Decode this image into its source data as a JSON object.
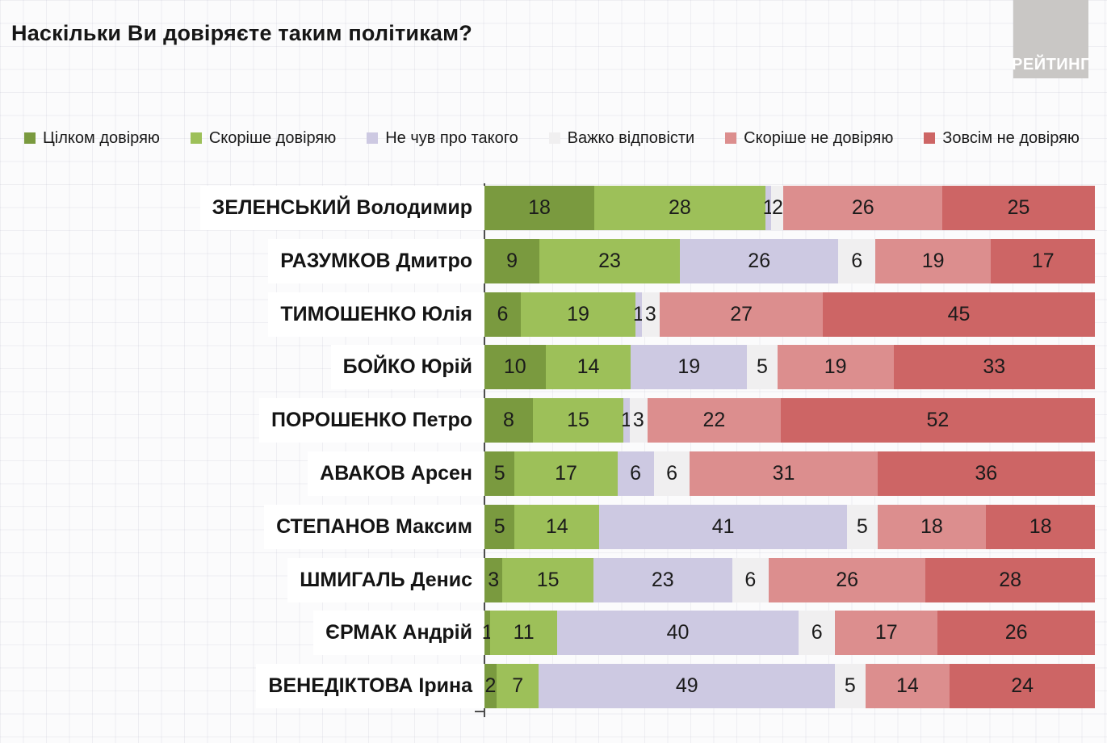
{
  "page": {
    "title": "Наскільки Ви довіряєте таким політикам?",
    "logo_text": "РЕЙТИНГ",
    "logo_bg": "#c9c7c5"
  },
  "chart_data": {
    "type": "bar",
    "orientation": "horizontal",
    "stacked": true,
    "value_unit": "percent",
    "title": "Наскільки Ви довіряєте таким політикам?",
    "legend_position": "top",
    "grid": "faint graph-paper background",
    "categories": [
      "ЗЕЛЕНСЬКИЙ Володимир",
      "РАЗУМКОВ Дмитро",
      "ТИМОШЕНКО Юлія",
      "БОЙКО Юрій",
      "ПОРОШЕНКО Петро",
      "АВАКОВ Арсен",
      "СТЕПАНОВ Максим",
      "ШМИГАЛЬ Денис",
      "ЄРМАК Андрій",
      "ВЕНЕДІКТОВА Ірина"
    ],
    "series": [
      {
        "name": "Цілком довіряю",
        "color": "#7a9a3f",
        "values": [
          18,
          9,
          6,
          10,
          8,
          5,
          5,
          3,
          1,
          2
        ]
      },
      {
        "name": "Скоріше довіряю",
        "color": "#9dc059",
        "values": [
          28,
          23,
          19,
          14,
          15,
          17,
          14,
          15,
          11,
          7
        ]
      },
      {
        "name": "Не чув про такого",
        "color": "#cdc9e2",
        "values": [
          1,
          26,
          1,
          19,
          1,
          6,
          41,
          23,
          40,
          49
        ]
      },
      {
        "name": "Важко відповісти",
        "color": "#f0eff0",
        "values": [
          2,
          6,
          3,
          5,
          3,
          6,
          5,
          6,
          6,
          5
        ]
      },
      {
        "name": "Скоріше не довіряю",
        "color": "#dc8e8e",
        "values": [
          26,
          19,
          27,
          19,
          22,
          31,
          18,
          26,
          17,
          14
        ]
      },
      {
        "name": "Зовсім не довіряю",
        "color": "#cd6565",
        "values": [
          25,
          17,
          45,
          33,
          52,
          36,
          18,
          28,
          26,
          24
        ]
      }
    ]
  }
}
